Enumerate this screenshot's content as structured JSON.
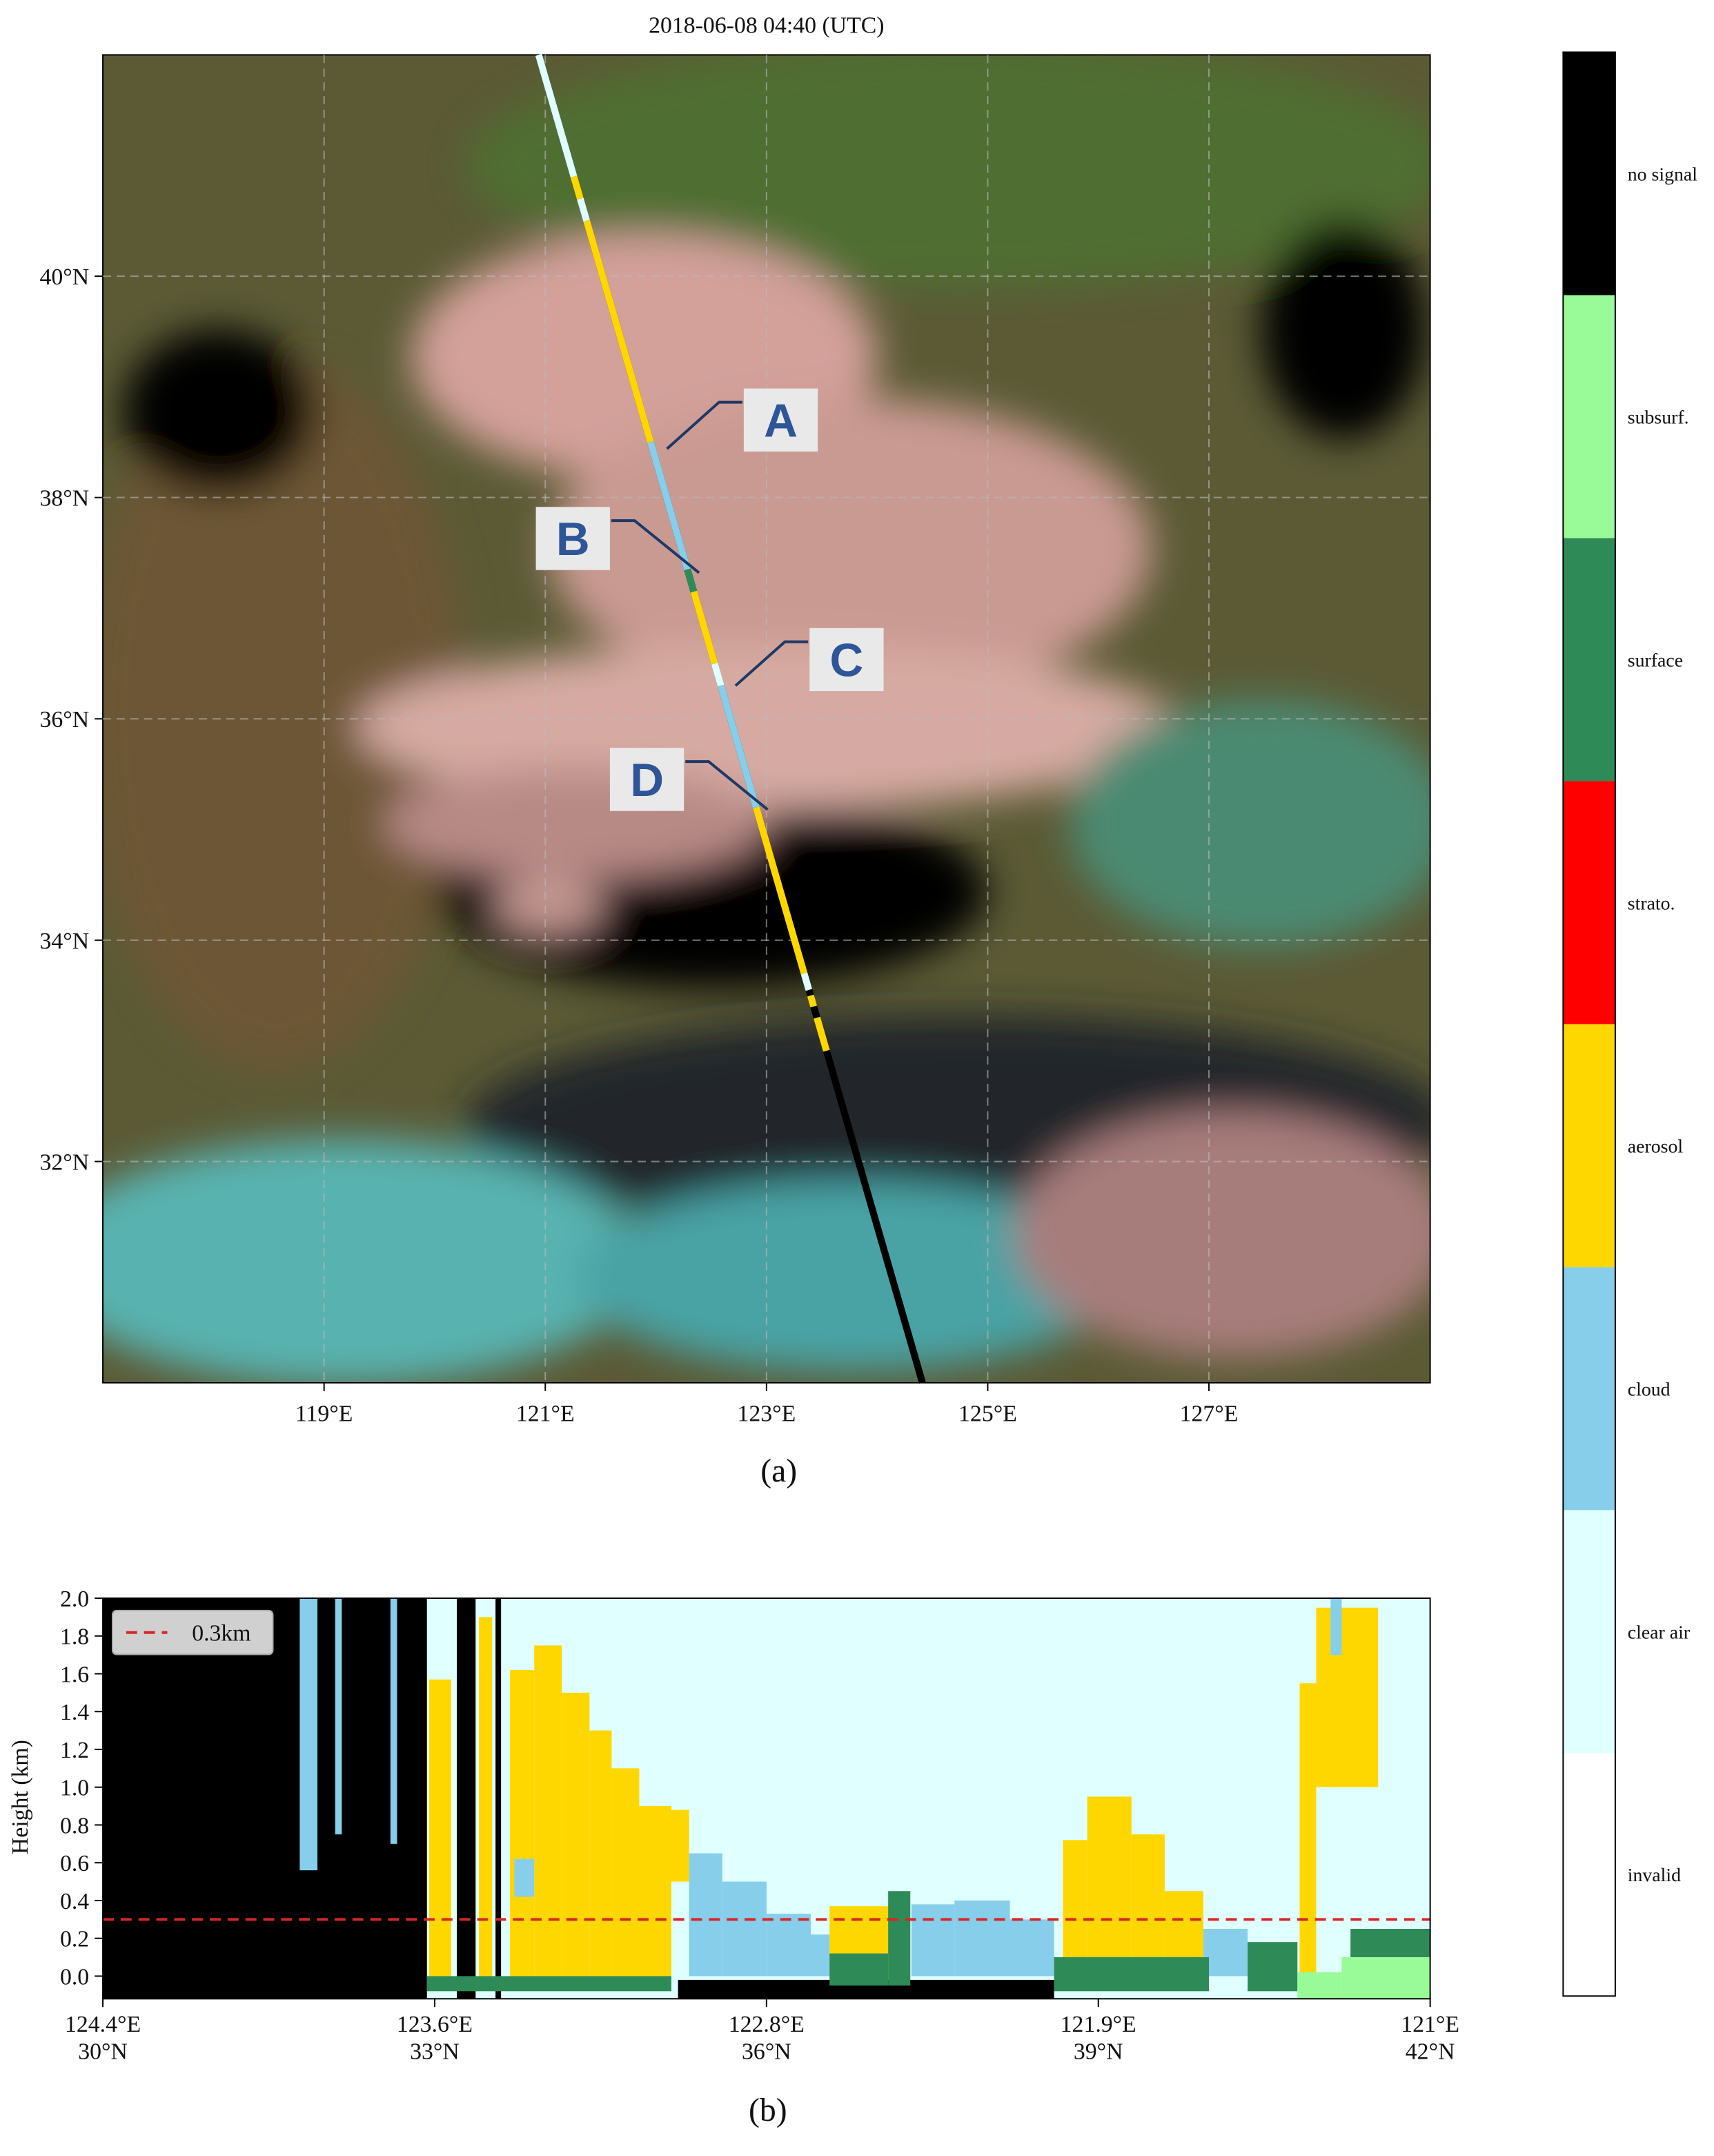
{
  "chart_data": [
    {
      "type": "map",
      "title": "2018-06-08 04:40 (UTC)",
      "caption": "(a)",
      "xlim": [
        117,
        129
      ],
      "ylim": [
        30,
        42
      ],
      "xticks": [
        {
          "value": 119,
          "label": "119°E"
        },
        {
          "value": 121,
          "label": "121°E"
        },
        {
          "value": 123,
          "label": "123°E"
        },
        {
          "value": 125,
          "label": "125°E"
        },
        {
          "value": 127,
          "label": "127°E"
        }
      ],
      "yticks": [
        {
          "value": 32,
          "label": "32°N"
        },
        {
          "value": 34,
          "label": "34°N"
        },
        {
          "value": 36,
          "label": "36°N"
        },
        {
          "value": 38,
          "label": "38°N"
        },
        {
          "value": 40,
          "label": "40°N"
        }
      ],
      "grid": true,
      "track": {
        "lon": [
          120.94,
          124.41
        ],
        "lat": [
          42,
          30
        ]
      },
      "track_segments": [
        {
          "class": "clear air",
          "lat": [
            [
              42,
              40.9
            ],
            [
              40.7,
              40.5
            ],
            [
              36.5,
              36.3
            ],
            [
              33.7,
              33.55
            ]
          ]
        },
        {
          "class": "aerosol",
          "lat": [
            [
              40.9,
              40.7
            ],
            [
              40.5,
              38.5
            ],
            [
              37.15,
              36.5
            ],
            [
              35.2,
              33.7
            ],
            [
              33.5,
              33.4
            ],
            [
              33.3,
              33.0
            ]
          ]
        },
        {
          "class": "cloud",
          "lat": [
            [
              38.5,
              37.35
            ],
            [
              36.3,
              35.2
            ]
          ]
        },
        {
          "class": "surface",
          "lat": [
            [
              37.35,
              37.15
            ]
          ]
        },
        {
          "class": "no signal",
          "lat": [
            [
              33.55,
              33.5
            ],
            [
              33.4,
              33.3
            ],
            [
              33.0,
              30
            ]
          ]
        }
      ],
      "annotations": [
        {
          "text": "A",
          "lon": 122.1,
          "lat": 38.44
        },
        {
          "text": "B",
          "lon": 122.39,
          "lat": 37.32
        },
        {
          "text": "C",
          "lon": 122.72,
          "lat": 36.3
        },
        {
          "text": "D",
          "lon": 123.01,
          "lat": 35.18
        }
      ]
    },
    {
      "type": "curtain",
      "caption": "(b)",
      "ylabel": "Height (km)",
      "xlim": [
        30,
        42
      ],
      "ylim": [
        -0.12,
        2.0
      ],
      "xticks": [
        {
          "value": 30,
          "label": [
            "124.4°E",
            "30°N"
          ]
        },
        {
          "value": 33,
          "label": [
            "123.6°E",
            "33°N"
          ]
        },
        {
          "value": 36,
          "label": [
            "122.8°E",
            "36°N"
          ]
        },
        {
          "value": 39,
          "label": [
            "121.9°E",
            "39°N"
          ]
        },
        {
          "value": 42,
          "label": [
            "121°E",
            "42°N"
          ]
        }
      ],
      "yticks": [
        {
          "value": 0,
          "label": "0.0"
        },
        0.2,
        0.4,
        0.6,
        0.8,
        {
          "value": 1,
          "label": "1.0"
        },
        1.2,
        1.4,
        1.6,
        1.8,
        {
          "value": 2,
          "label": "2.0"
        }
      ],
      "background": "clear air",
      "reference_line": {
        "value": 0.3,
        "label": "0.3km",
        "color": "#d62728"
      },
      "regions": [
        {
          "class": "no signal",
          "rects": [
            [
              30,
              32.93,
              -0.12,
              2.0
            ],
            [
              33.2,
              33.37,
              -0.12,
              2.0
            ],
            [
              33.55,
              33.6,
              -0.12,
              2.0
            ],
            [
              35.2,
              38.6,
              -0.12,
              -0.02
            ]
          ]
        },
        {
          "class": "aerosol",
          "rects": [
            [
              32.95,
              33.15,
              0,
              1.57
            ],
            [
              33.4,
              33.52,
              0,
              1.9
            ],
            [
              33.68,
              33.9,
              0,
              1.62
            ],
            [
              33.9,
              34.15,
              0,
              1.75
            ],
            [
              34.15,
              34.4,
              0,
              1.5
            ],
            [
              34.4,
              34.6,
              0,
              1.3
            ],
            [
              34.6,
              34.85,
              0,
              1.1
            ],
            [
              34.85,
              35.14,
              0,
              0.9
            ],
            [
              35.14,
              35.3,
              0.5,
              0.88
            ],
            [
              36.57,
              37.15,
              0,
              0.37
            ],
            [
              38.68,
              38.9,
              0,
              0.72
            ],
            [
              38.9,
              39.3,
              0,
              0.95
            ],
            [
              39.3,
              39.6,
              0,
              0.75
            ],
            [
              39.6,
              39.95,
              0,
              0.45
            ],
            [
              40.82,
              40.97,
              0,
              1.55
            ],
            [
              40.97,
              41.53,
              1.0,
              1.95
            ]
          ]
        },
        {
          "class": "cloud",
          "rects": [
            [
              31.78,
              31.94,
              0.56,
              2.0
            ],
            [
              32.1,
              32.16,
              0.75,
              2.0
            ],
            [
              32.6,
              32.66,
              0.7,
              2.0
            ],
            [
              33.72,
              33.9,
              0.42,
              0.62
            ],
            [
              35.3,
              35.6,
              0,
              0.65
            ],
            [
              35.6,
              36.0,
              0,
              0.5
            ],
            [
              36.0,
              36.4,
              0,
              0.33
            ],
            [
              36.4,
              36.57,
              0,
              0.22
            ],
            [
              37.31,
              37.7,
              0,
              0.38
            ],
            [
              37.7,
              38.2,
              0,
              0.4
            ],
            [
              38.2,
              38.6,
              0,
              0.3
            ],
            [
              39.95,
              40.35,
              0,
              0.25
            ],
            [
              41.1,
              41.2,
              1.7,
              2.0
            ]
          ]
        },
        {
          "class": "surface",
          "rects": [
            [
              32.93,
              35.14,
              -0.08,
              0
            ],
            [
              36.57,
              37.1,
              -0.05,
              0.12
            ],
            [
              37.1,
              37.3,
              -0.05,
              0.45
            ],
            [
              38.6,
              40.0,
              -0.08,
              0.1
            ],
            [
              40.35,
              40.8,
              -0.08,
              0.18
            ],
            [
              41.28,
              42,
              0.1,
              0.25
            ]
          ]
        },
        {
          "class": "subsurf.",
          "rects": [
            [
              41.2,
              42,
              -0.12,
              0.1
            ],
            [
              40.8,
              41.2,
              -0.12,
              0.02
            ]
          ]
        }
      ]
    },
    {
      "type": "colorbar",
      "categories": [
        "invalid",
        "clear air",
        "cloud",
        "aerosol",
        "strato.",
        "surface",
        "subsurf.",
        "no signal"
      ],
      "colors": [
        "#ffffff",
        "#e0ffff",
        "#87ceeb",
        "#ffd700",
        "#ff0000",
        "#2e8b57",
        "#98fb98",
        "#000000"
      ]
    }
  ]
}
